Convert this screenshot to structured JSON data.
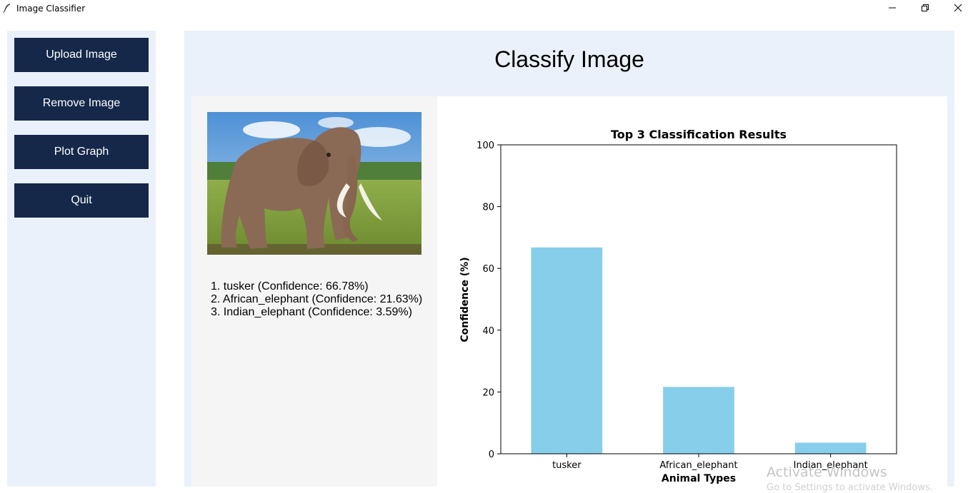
{
  "window": {
    "title": "Image Classifier",
    "app_icon": "feather-icon",
    "controls": [
      "minimize-icon",
      "restore-icon",
      "close-icon"
    ]
  },
  "sidebar": {
    "buttons": [
      {
        "label": "Upload Image"
      },
      {
        "label": "Remove Image"
      },
      {
        "label": "Plot Graph"
      },
      {
        "label": "Quit"
      }
    ]
  },
  "main": {
    "title": "Classify Image",
    "image": {
      "subject": "elephant",
      "icon": "elephant-photo"
    },
    "results": [
      "1. tusker (Confidence: 66.78%)",
      "2. African_elephant (Confidence: 21.63%)",
      "3. Indian_elephant (Confidence: 3.59%)"
    ]
  },
  "chart_data": {
    "type": "bar",
    "title": "Top 3 Classification Results",
    "xlabel": "Animal Types",
    "ylabel": "Confidence (%)",
    "categories": [
      "tusker",
      "African_elephant",
      "Indian_elephant"
    ],
    "values": [
      66.78,
      21.63,
      3.59
    ],
    "ylim": [
      0,
      100
    ],
    "yticks": [
      0,
      20,
      40,
      60,
      80,
      100
    ],
    "bar_color": "#87ceeb",
    "grid": false
  },
  "watermark": {
    "line1": "Activate Windows",
    "line2": "Go to Settings to activate Windows."
  },
  "colors": {
    "button_bg": "#15284a",
    "panel_bg": "#eaf1fa",
    "left_card_bg": "#f5f5f5"
  }
}
